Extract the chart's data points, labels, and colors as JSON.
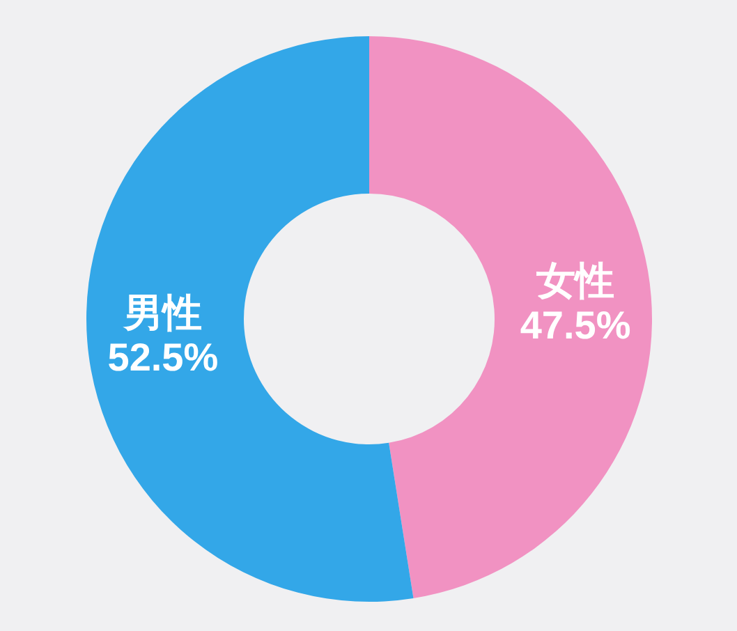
{
  "chart_data": {
    "type": "donut",
    "categories": [
      "女性",
      "男性"
    ],
    "values": [
      47.5,
      52.5
    ],
    "colors": [
      "#f192c2",
      "#33a7e8"
    ],
    "value_labels": [
      "47.5%",
      "52.5%"
    ]
  }
}
